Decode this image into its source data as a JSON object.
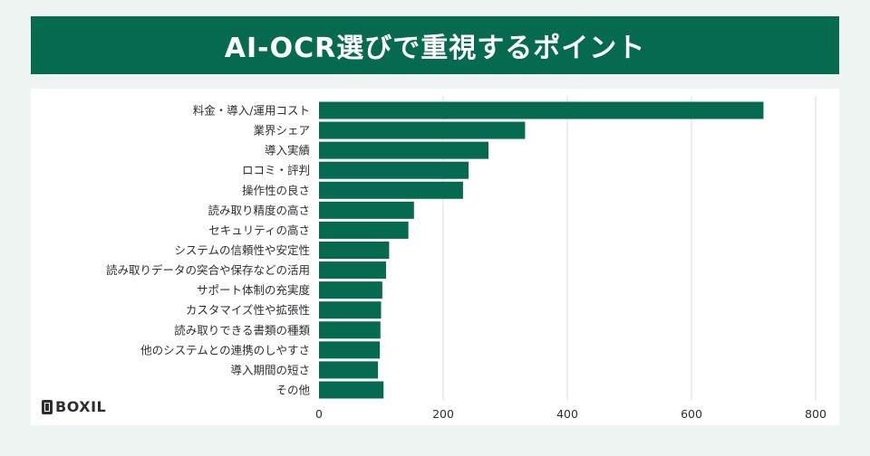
{
  "title": "AI-OCR選びで重視するポイント",
  "brand": {
    "name": "BOXIL"
  },
  "colors": {
    "bar": "#056a4f",
    "header": "#056a4f",
    "grid": "#d7dcdb",
    "text": "#2b2f33"
  },
  "chart_data": {
    "type": "bar",
    "orientation": "horizontal",
    "categories": [
      "料金・導入/運用コスト",
      "業界シェア",
      "導入実績",
      "ロコミ・評判",
      "操作性の良さ",
      "読み取り精度の高さ",
      "セキュリティの高さ",
      "システムの信頼性や安定性",
      "読み取りデータの突合や保存などの活用",
      "サポート体制の充実度",
      "カスタマイズ性や拡張性",
      "読み取りできる書類の種類",
      "他のシステムとの連携のしやすさ",
      "導入期間の短さ",
      "その他"
    ],
    "values": [
      716,
      332,
      273,
      241,
      232,
      153,
      144,
      113,
      108,
      102,
      100,
      99,
      98,
      95,
      104
    ],
    "xlim": [
      0,
      800
    ],
    "xticks": [
      0,
      200,
      400,
      600,
      800
    ],
    "grid": true,
    "legend": "none"
  }
}
